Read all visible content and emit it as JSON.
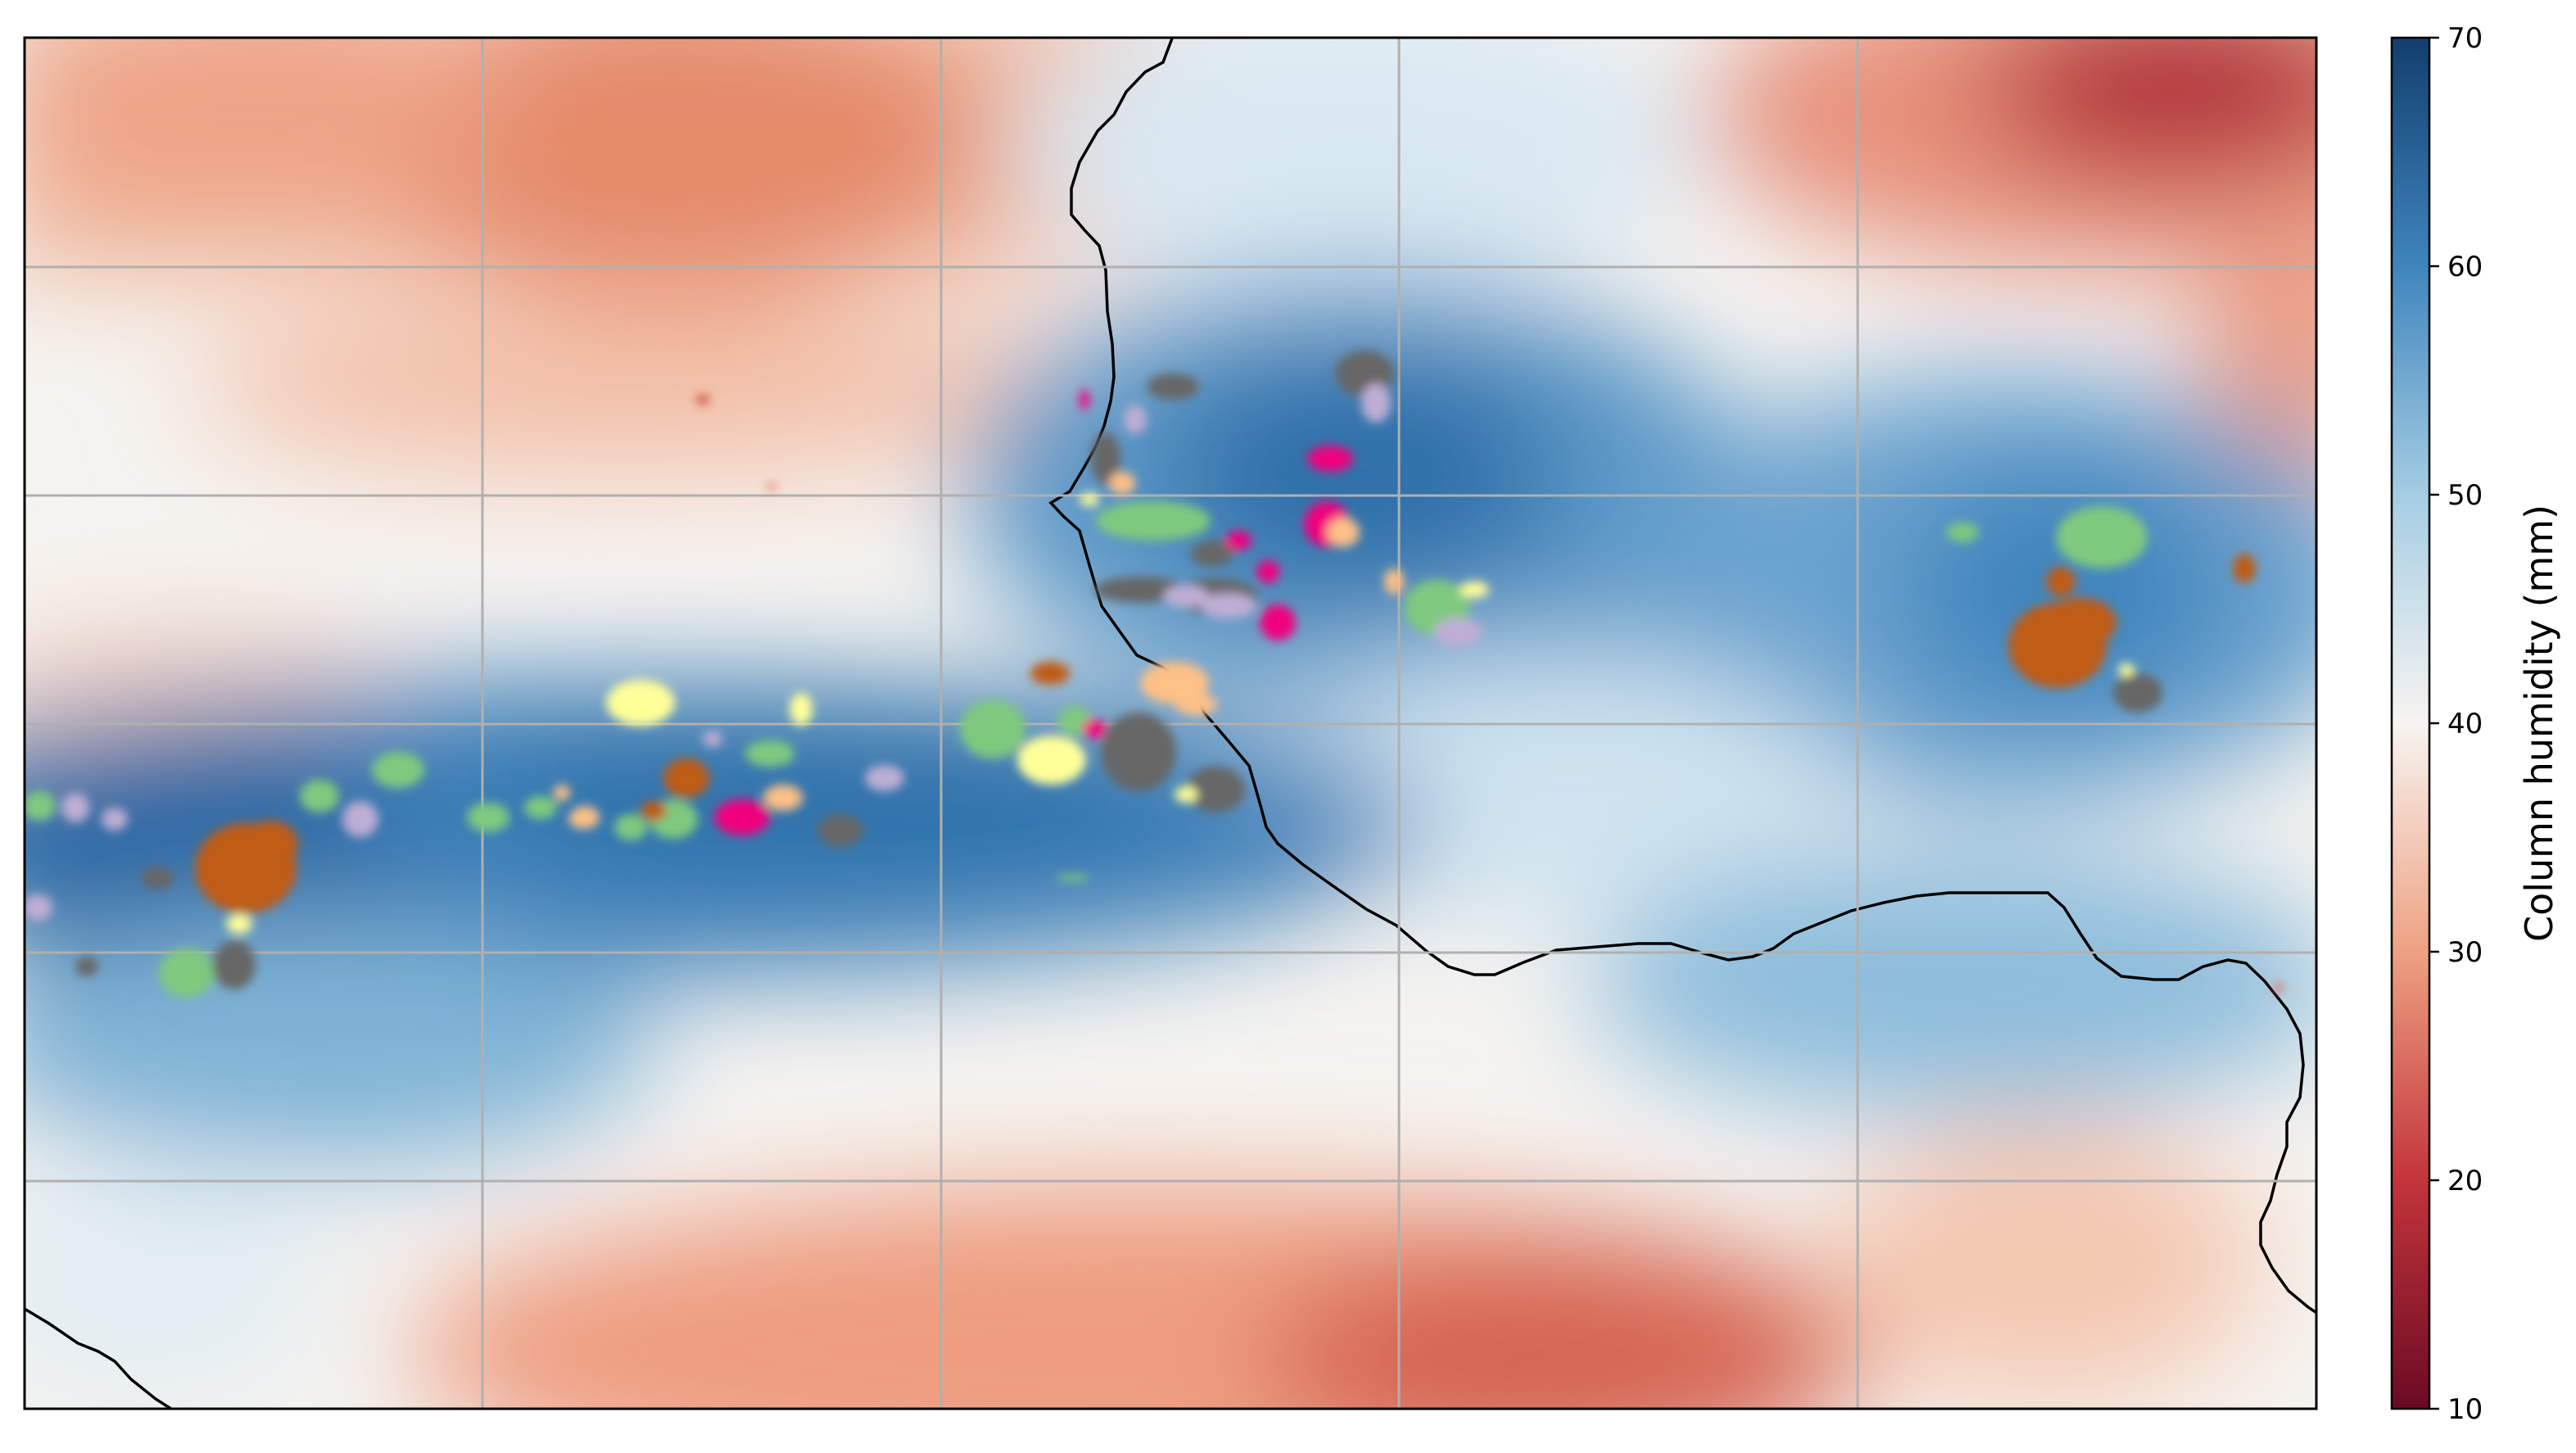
{
  "colorbar": {
    "label": "Column humidity (mm)",
    "min": 10,
    "max": 70,
    "ticks": [
      {
        "value": 10,
        "label": "10"
      },
      {
        "value": 20,
        "label": "20"
      },
      {
        "value": 30,
        "label": "30"
      },
      {
        "value": 40,
        "label": "40"
      },
      {
        "value": 50,
        "label": "50"
      },
      {
        "value": 60,
        "label": "60"
      },
      {
        "value": 70,
        "label": "70"
      }
    ],
    "colormap": "RdBu",
    "colors": [
      "#6b0a24",
      "#c3343b",
      "#eea182",
      "#f7f4f1",
      "#a5cde3",
      "#3f85bd",
      "#123e6e"
    ]
  },
  "map": {
    "gridlines": true,
    "gridline_color": "#b0b0b0",
    "coastline_color": "#000000",
    "overlay_object_colors": [
      "#7fc97f",
      "#beaed4",
      "#fdc086",
      "#ffff99",
      "#f0027f",
      "#bf5b17",
      "#666666"
    ]
  }
}
